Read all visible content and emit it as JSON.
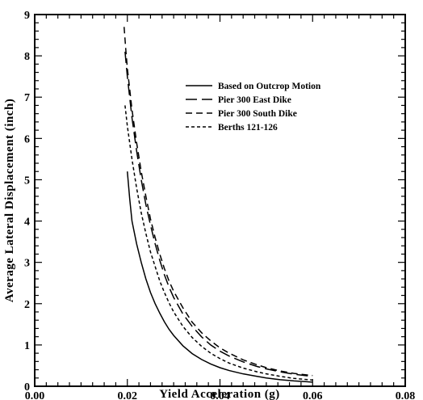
{
  "chart_data": {
    "type": "line",
    "title": "",
    "xlabel": "Yield Acceleration (g)",
    "ylabel": "Average Lateral Displacement (inch)",
    "xlim": [
      0.0,
      0.08
    ],
    "ylim": [
      0,
      9
    ],
    "x_ticks": [
      "0.00",
      "0.02",
      "0.04",
      "0.06",
      "0.08"
    ],
    "y_ticks": [
      "0",
      "1",
      "2",
      "3",
      "4",
      "5",
      "6",
      "7",
      "8",
      "9"
    ],
    "grid": false,
    "legend_position": "top-right",
    "series": [
      {
        "name": "Based on Outcrop Motion",
        "style": "solid",
        "points": [
          [
            0.02,
            5.2
          ],
          [
            0.0205,
            4.55
          ],
          [
            0.021,
            4.0
          ],
          [
            0.022,
            3.45
          ],
          [
            0.023,
            3.0
          ],
          [
            0.024,
            2.6
          ],
          [
            0.025,
            2.27
          ],
          [
            0.026,
            2.0
          ],
          [
            0.027,
            1.77
          ],
          [
            0.028,
            1.56
          ],
          [
            0.029,
            1.38
          ],
          [
            0.03,
            1.23
          ],
          [
            0.032,
            0.98
          ],
          [
            0.034,
            0.79
          ],
          [
            0.036,
            0.65
          ],
          [
            0.038,
            0.54
          ],
          [
            0.04,
            0.45
          ],
          [
            0.042,
            0.38
          ],
          [
            0.045,
            0.3
          ],
          [
            0.048,
            0.24
          ],
          [
            0.05,
            0.2
          ],
          [
            0.053,
            0.16
          ],
          [
            0.056,
            0.13
          ],
          [
            0.06,
            0.1
          ]
        ]
      },
      {
        "name": "Pier 300 East Dike",
        "style": "long-dash",
        "points": [
          [
            0.0195,
            8.1
          ],
          [
            0.02,
            7.5
          ],
          [
            0.021,
            6.5
          ],
          [
            0.022,
            5.7
          ],
          [
            0.023,
            5.0
          ],
          [
            0.024,
            4.4
          ],
          [
            0.025,
            3.9
          ],
          [
            0.026,
            3.45
          ],
          [
            0.027,
            3.05
          ],
          [
            0.028,
            2.7
          ],
          [
            0.029,
            2.4
          ],
          [
            0.03,
            2.15
          ],
          [
            0.032,
            1.75
          ],
          [
            0.034,
            1.45
          ],
          [
            0.036,
            1.2
          ],
          [
            0.038,
            1.0
          ],
          [
            0.04,
            0.85
          ],
          [
            0.042,
            0.73
          ],
          [
            0.045,
            0.59
          ],
          [
            0.048,
            0.48
          ],
          [
            0.05,
            0.42
          ],
          [
            0.053,
            0.35
          ],
          [
            0.056,
            0.29
          ],
          [
            0.06,
            0.24
          ]
        ]
      },
      {
        "name": "Pier 300 South Dike",
        "style": "dash",
        "points": [
          [
            0.0193,
            8.7
          ],
          [
            0.0197,
            8.1
          ],
          [
            0.02,
            7.7
          ],
          [
            0.021,
            6.7
          ],
          [
            0.022,
            5.9
          ],
          [
            0.023,
            5.2
          ],
          [
            0.024,
            4.6
          ],
          [
            0.025,
            4.05
          ],
          [
            0.026,
            3.6
          ],
          [
            0.027,
            3.2
          ],
          [
            0.028,
            2.85
          ],
          [
            0.029,
            2.55
          ],
          [
            0.03,
            2.3
          ],
          [
            0.032,
            1.9
          ],
          [
            0.034,
            1.55
          ],
          [
            0.036,
            1.3
          ],
          [
            0.038,
            1.1
          ],
          [
            0.04,
            0.93
          ],
          [
            0.042,
            0.8
          ],
          [
            0.045,
            0.64
          ],
          [
            0.048,
            0.52
          ],
          [
            0.05,
            0.45
          ],
          [
            0.053,
            0.37
          ],
          [
            0.056,
            0.31
          ],
          [
            0.06,
            0.26
          ]
        ]
      },
      {
        "name": "Berths 121-126",
        "style": "short-dash",
        "points": [
          [
            0.0195,
            6.8
          ],
          [
            0.02,
            6.3
          ],
          [
            0.021,
            5.5
          ],
          [
            0.022,
            4.8
          ],
          [
            0.023,
            4.2
          ],
          [
            0.024,
            3.7
          ],
          [
            0.025,
            3.25
          ],
          [
            0.026,
            2.9
          ],
          [
            0.027,
            2.55
          ],
          [
            0.028,
            2.27
          ],
          [
            0.029,
            2.02
          ],
          [
            0.03,
            1.8
          ],
          [
            0.032,
            1.45
          ],
          [
            0.034,
            1.18
          ],
          [
            0.036,
            0.97
          ],
          [
            0.038,
            0.8
          ],
          [
            0.04,
            0.67
          ],
          [
            0.042,
            0.56
          ],
          [
            0.045,
            0.44
          ],
          [
            0.048,
            0.35
          ],
          [
            0.05,
            0.3
          ],
          [
            0.053,
            0.24
          ],
          [
            0.056,
            0.19
          ],
          [
            0.06,
            0.15
          ]
        ]
      }
    ]
  }
}
